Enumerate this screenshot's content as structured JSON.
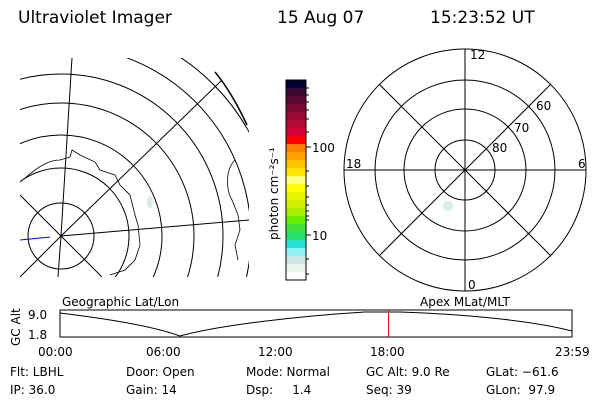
{
  "header": {
    "title": "Ultraviolet Imager",
    "date": "15 Aug 07",
    "time": "15:23:52 UT"
  },
  "colorbar": {
    "label": "photon cm⁻²s⁻¹",
    "ticks": [
      "100",
      "10"
    ],
    "colors": [
      "#000033",
      "#3a0a30",
      "#5a0a32",
      "#780a32",
      "#960a35",
      "#b40a35",
      "#d8003a",
      "#ff0000",
      "#ff7f00",
      "#ffa200",
      "#ffc400",
      "#ffe400",
      "#ffff80",
      "#ffff00",
      "#e8f400",
      "#ccf000",
      "#a8f000",
      "#66f000",
      "#44e040",
      "#28e070",
      "#28e0d8",
      "#90f0f4",
      "#d0e4e4",
      "#e8f4ec",
      "#ffffff"
    ]
  },
  "polar": {
    "hour_labels": [
      "12",
      "18",
      "6",
      "0"
    ],
    "lat_labels": [
      "60",
      "70",
      "80"
    ]
  },
  "timeline": {
    "left_title": "Geographic Lat/Lon",
    "right_title": "Apex MLat/MLT",
    "ylabel": "GC Alt",
    "ymax": "9.0",
    "ymin": "1.8",
    "xticks": [
      "00:00",
      "06:00",
      "12:00",
      "18:00",
      "23:59"
    ],
    "current_time_color": "#ff0000",
    "current_time_hours": 15.4
  },
  "info": {
    "flt": "Flt: LBHL",
    "ip": "IP: 36.0",
    "door": "Door: Open",
    "gain": "Gain: 14",
    "mode": "Mode: Normal",
    "dsp": "Dsp:     1.4",
    "gcalt": "GC Alt: 9.0 Re",
    "seq": "Seq: 39",
    "glat": "GLat: −61.6",
    "glon": "GLon:  97.9"
  }
}
